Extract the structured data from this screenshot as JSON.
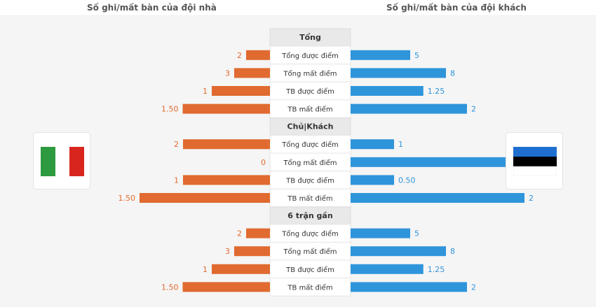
{
  "header": {
    "home_title": "Số ghi/mất bàn của đội nhà",
    "away_title": "Số ghi/mất bàn của đội khách"
  },
  "teams": {
    "home_flag_icon": "italy-flag-icon",
    "away_flag_icon": "estonia-flag-icon"
  },
  "colors": {
    "home": "#e06a2f",
    "away": "#2f95db",
    "italy_green": "#2e9a3f",
    "italy_white": "#ffffff",
    "italy_red": "#d8261f",
    "estonia_blue": "#1f6fd0",
    "estonia_black": "#000000",
    "estonia_white": "#ffffff"
  },
  "chart_data": {
    "type": "bar",
    "orientation": "horizontal-diverging",
    "series": [
      {
        "name": "home"
      },
      {
        "name": "away"
      }
    ],
    "sections": [
      {
        "title": "Tổng",
        "rows": [
          {
            "label": "Tổng được điểm",
            "home": 2,
            "home_label": "2",
            "away": 5,
            "away_label": "5"
          },
          {
            "label": "Tổng mất điểm",
            "home": 3,
            "home_label": "3",
            "away": 8,
            "away_label": "8"
          },
          {
            "label": "TB được điểm",
            "home": 1,
            "home_label": "1",
            "away": 1.25,
            "away_label": "1.25"
          },
          {
            "label": "TB mất điểm",
            "home": 1.5,
            "home_label": "1.50",
            "away": 2,
            "away_label": "2"
          }
        ]
      },
      {
        "title": "Chủ|Khách",
        "rows": [
          {
            "label": "Tổng được điểm",
            "home": 2,
            "home_label": "2",
            "away": 1,
            "away_label": "1"
          },
          {
            "label": "Tổng mất điểm",
            "home": 0,
            "home_label": "0",
            "away": 4,
            "away_label": "4"
          },
          {
            "label": "TB được điểm",
            "home": 1,
            "home_label": "1",
            "away": 0.5,
            "away_label": "0.50"
          },
          {
            "label": "TB mất điểm",
            "home": 1.5,
            "home_label": "1.50",
            "away": 2,
            "away_label": "2"
          }
        ]
      },
      {
        "title": "6 trận gần",
        "rows": [
          {
            "label": "Tổng được điểm",
            "home": 2,
            "home_label": "2",
            "away": 5,
            "away_label": "5"
          },
          {
            "label": "Tổng mất điểm",
            "home": 3,
            "home_label": "3",
            "away": 8,
            "away_label": "8"
          },
          {
            "label": "TB được điểm",
            "home": 1,
            "home_label": "1",
            "away": 1.25,
            "away_label": "1.25"
          },
          {
            "label": "TB mất điểm",
            "home": 1.5,
            "home_label": "1.50",
            "away": 2,
            "away_label": "2"
          }
        ]
      }
    ]
  }
}
